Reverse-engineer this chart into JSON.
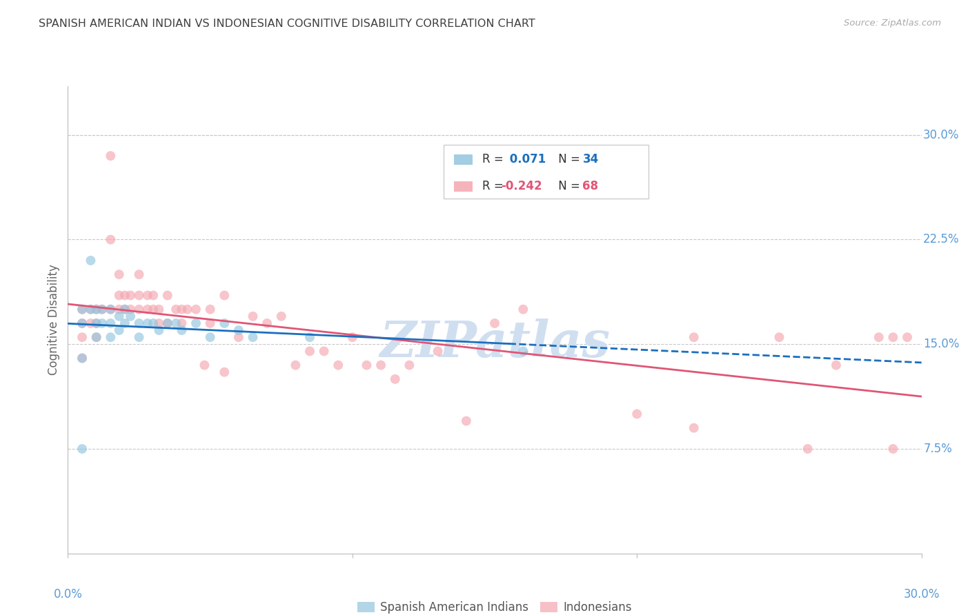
{
  "title": "SPANISH AMERICAN INDIAN VS INDONESIAN COGNITIVE DISABILITY CORRELATION CHART",
  "source": "Source: ZipAtlas.com",
  "ylabel": "Cognitive Disability",
  "ytick_labels": [
    "30.0%",
    "22.5%",
    "15.0%",
    "7.5%"
  ],
  "ytick_values": [
    0.3,
    0.225,
    0.15,
    0.075
  ],
  "xmin": 0.0,
  "xmax": 0.3,
  "ymin": 0.0,
  "ymax": 0.335,
  "blue_color": "#92c5de",
  "pink_color": "#f4a6b0",
  "trend_blue": "#1a6fbe",
  "trend_pink": "#e05575",
  "background_color": "#ffffff",
  "grid_color": "#c8c8c8",
  "axis_label_color": "#5b9bd5",
  "title_color": "#404040",
  "watermark_color": "#d0dff0",
  "blue_scatter_x": [
    0.005,
    0.005,
    0.005,
    0.008,
    0.008,
    0.01,
    0.01,
    0.01,
    0.012,
    0.012,
    0.015,
    0.015,
    0.015,
    0.018,
    0.018,
    0.02,
    0.02,
    0.022,
    0.025,
    0.025,
    0.028,
    0.03,
    0.032,
    0.035,
    0.038,
    0.04,
    0.045,
    0.05,
    0.055,
    0.06,
    0.065,
    0.085,
    0.16,
    0.005
  ],
  "blue_scatter_y": [
    0.175,
    0.165,
    0.14,
    0.21,
    0.175,
    0.175,
    0.165,
    0.155,
    0.175,
    0.165,
    0.175,
    0.165,
    0.155,
    0.17,
    0.16,
    0.175,
    0.165,
    0.17,
    0.165,
    0.155,
    0.165,
    0.165,
    0.16,
    0.165,
    0.165,
    0.16,
    0.165,
    0.155,
    0.165,
    0.16,
    0.155,
    0.155,
    0.145,
    0.075
  ],
  "pink_scatter_x": [
    0.005,
    0.005,
    0.005,
    0.005,
    0.008,
    0.008,
    0.01,
    0.01,
    0.01,
    0.012,
    0.015,
    0.015,
    0.015,
    0.018,
    0.018,
    0.018,
    0.02,
    0.02,
    0.022,
    0.022,
    0.025,
    0.025,
    0.025,
    0.028,
    0.028,
    0.03,
    0.03,
    0.032,
    0.032,
    0.035,
    0.035,
    0.038,
    0.04,
    0.04,
    0.042,
    0.045,
    0.048,
    0.05,
    0.05,
    0.055,
    0.055,
    0.06,
    0.065,
    0.07,
    0.075,
    0.08,
    0.085,
    0.09,
    0.095,
    0.1,
    0.105,
    0.11,
    0.115,
    0.12,
    0.13,
    0.14,
    0.15,
    0.16,
    0.2,
    0.22,
    0.25,
    0.27,
    0.285,
    0.29,
    0.295,
    0.29,
    0.22,
    0.26
  ],
  "pink_scatter_y": [
    0.175,
    0.165,
    0.155,
    0.14,
    0.175,
    0.165,
    0.175,
    0.165,
    0.155,
    0.175,
    0.285,
    0.225,
    0.175,
    0.2,
    0.185,
    0.175,
    0.185,
    0.175,
    0.185,
    0.175,
    0.2,
    0.185,
    0.175,
    0.185,
    0.175,
    0.185,
    0.175,
    0.175,
    0.165,
    0.185,
    0.165,
    0.175,
    0.175,
    0.165,
    0.175,
    0.175,
    0.135,
    0.175,
    0.165,
    0.185,
    0.13,
    0.155,
    0.17,
    0.165,
    0.17,
    0.135,
    0.145,
    0.145,
    0.135,
    0.155,
    0.135,
    0.135,
    0.125,
    0.135,
    0.145,
    0.095,
    0.165,
    0.175,
    0.1,
    0.155,
    0.155,
    0.135,
    0.155,
    0.155,
    0.155,
    0.075,
    0.09,
    0.075
  ]
}
